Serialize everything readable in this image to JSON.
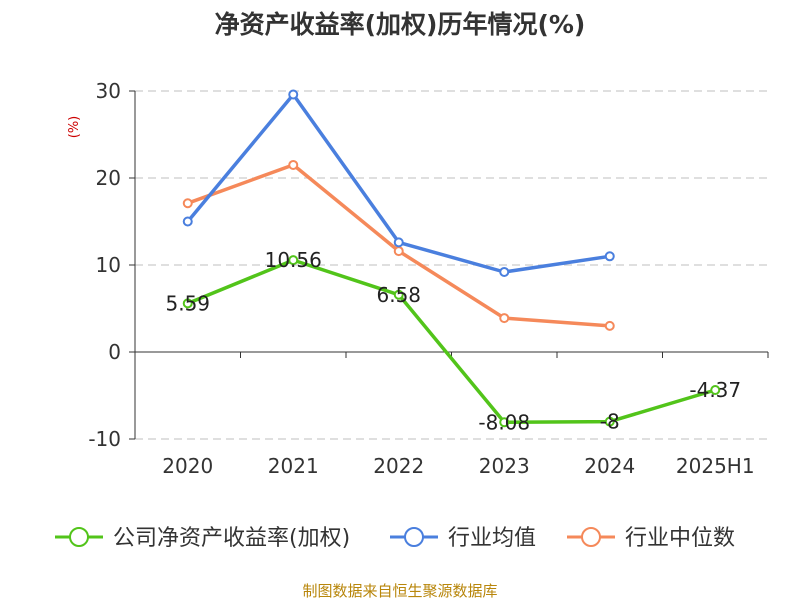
{
  "chart_data": {
    "type": "line",
    "title": "净资产收益率(加权)历年情况(%)",
    "ylabel": "(%)",
    "xlabel": "",
    "categories": [
      "2020",
      "2021",
      "2022",
      "2023",
      "2024",
      "2025H1"
    ],
    "ylim": [
      -10,
      30
    ],
    "yticks": [
      30,
      20,
      10,
      0,
      -10
    ],
    "grid": true,
    "legend_position": "bottom",
    "series": [
      {
        "name": "公司净资产收益率(加权)",
        "color": "#52c41a",
        "values": [
          5.59,
          10.56,
          6.58,
          -8.08,
          -8,
          -4.37
        ],
        "labels": [
          "5.59",
          "10.56",
          "6.58",
          "-8.08",
          "-8",
          "-4.37"
        ]
      },
      {
        "name": "行业均值",
        "color": "#4a7fde",
        "values": [
          15.0,
          29.6,
          12.6,
          9.2,
          11.0,
          null
        ]
      },
      {
        "name": "行业中位数",
        "color": "#f5895a",
        "values": [
          17.1,
          21.5,
          11.6,
          3.9,
          3.0,
          null
        ]
      }
    ],
    "source": "制图数据来自恒生聚源数据库"
  }
}
